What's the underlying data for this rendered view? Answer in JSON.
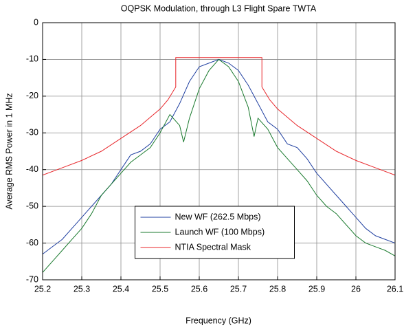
{
  "chart_data": {
    "type": "line",
    "title": "OQPSK Modulation, through L3 Flight Spare TWTA",
    "xlabel": "Frequency (GHz)",
    "ylabel": "Average RMS Power in 1 MHz",
    "xlim": [
      25.2,
      26.1
    ],
    "ylim": [
      -70,
      0
    ],
    "xticks": [
      25.2,
      25.3,
      25.4,
      25.5,
      25.6,
      25.7,
      25.8,
      25.9,
      26,
      26.1
    ],
    "yticks": [
      -70,
      -60,
      -50,
      -40,
      -30,
      -20,
      -10,
      0
    ],
    "grid": true,
    "legend": "lower center",
    "series": [
      {
        "name": "New WF (262.5 Mbps)",
        "color": "#1f3fa0",
        "x": [
          25.2,
          25.225,
          25.25,
          25.275,
          25.3,
          25.325,
          25.35,
          25.375,
          25.4,
          25.425,
          25.45,
          25.475,
          25.5,
          25.525,
          25.55,
          25.575,
          25.6,
          25.625,
          25.65,
          25.675,
          25.7,
          25.725,
          25.75,
          25.775,
          25.8,
          25.825,
          25.85,
          25.875,
          25.9,
          25.925,
          25.95,
          25.975,
          26,
          26.025,
          26.05,
          26.075,
          26.1
        ],
        "values": [
          -63,
          -61,
          -59,
          -56,
          -53,
          -50,
          -47,
          -44,
          -40,
          -36,
          -35,
          -33,
          -29,
          -27,
          -22,
          -16,
          -12,
          -11,
          -10,
          -11,
          -13,
          -17,
          -22,
          -27,
          -29,
          -33,
          -34,
          -37,
          -41,
          -44,
          -47,
          -50,
          -53,
          -56,
          -58,
          -59,
          -60
        ]
      },
      {
        "name": "Launch WF (100 Mbps)",
        "color": "#1a7a2e",
        "x": [
          25.2,
          25.225,
          25.25,
          25.275,
          25.3,
          25.325,
          25.35,
          25.375,
          25.4,
          25.425,
          25.45,
          25.475,
          25.5,
          25.525,
          25.55,
          25.56,
          25.575,
          25.6,
          25.625,
          25.65,
          25.675,
          25.7,
          25.725,
          25.74,
          25.75,
          25.775,
          25.8,
          25.825,
          25.85,
          25.875,
          25.9,
          25.925,
          25.95,
          25.975,
          26,
          26.025,
          26.05,
          26.075,
          26.1
        ],
        "values": [
          -68,
          -65,
          -62,
          -59,
          -56,
          -52,
          -47,
          -44,
          -41,
          -38,
          -36,
          -34,
          -30,
          -25,
          -28,
          -32.5,
          -26,
          -18,
          -13,
          -10,
          -12,
          -16,
          -23,
          -31,
          -26,
          -29,
          -34,
          -37,
          -40,
          -43,
          -47,
          -50,
          -52,
          -55,
          -58,
          -60,
          -61,
          -62,
          -63.5
        ]
      },
      {
        "name": "NTIA Spectral Mask",
        "color": "#e8262a",
        "x": [
          25.2,
          25.25,
          25.3,
          25.35,
          25.4,
          25.45,
          25.5,
          25.52,
          25.54,
          25.54,
          25.76,
          25.76,
          25.78,
          25.8,
          25.85,
          25.9,
          25.95,
          26,
          26.05,
          26.1
        ],
        "values": [
          -41.5,
          -39.5,
          -37.5,
          -35,
          -31.5,
          -28,
          -23.5,
          -21,
          -17.5,
          -9.5,
          -9.5,
          -17.5,
          -21,
          -23.5,
          -28,
          -31.5,
          -35,
          -37.5,
          -39.5,
          -41.5
        ]
      }
    ]
  }
}
